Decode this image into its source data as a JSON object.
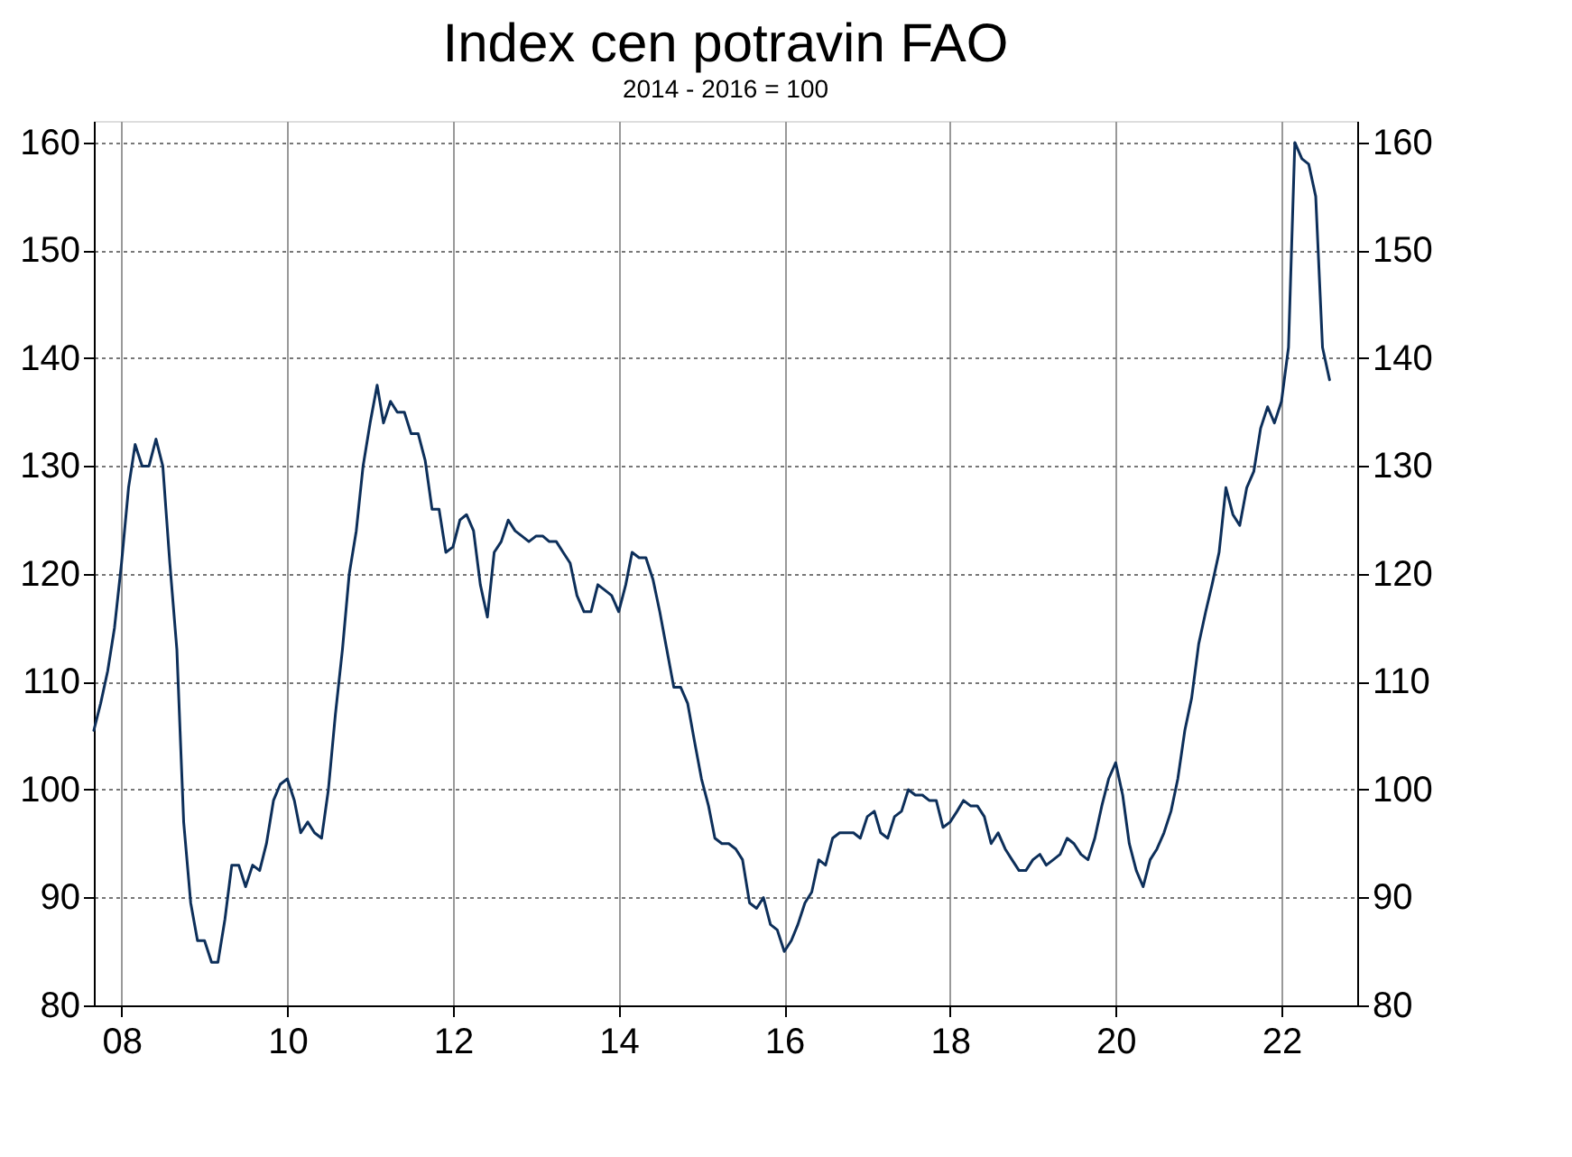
{
  "chart_data": {
    "type": "line",
    "title": "Index cen potravin FAO",
    "subtitle": "2014 - 2016 = 100",
    "x": [
      "2007-09",
      "2007-10",
      "2007-11",
      "2007-12",
      "2008-01",
      "2008-02",
      "2008-03",
      "2008-04",
      "2008-05",
      "2008-06",
      "2008-07",
      "2008-08",
      "2008-09",
      "2008-10",
      "2008-11",
      "2008-12",
      "2009-01",
      "2009-02",
      "2009-03",
      "2009-04",
      "2009-05",
      "2009-06",
      "2009-07",
      "2009-08",
      "2009-09",
      "2009-10",
      "2009-11",
      "2009-12",
      "2010-01",
      "2010-02",
      "2010-03",
      "2010-04",
      "2010-05",
      "2010-06",
      "2010-07",
      "2010-08",
      "2010-09",
      "2010-10",
      "2010-11",
      "2010-12",
      "2011-01",
      "2011-02",
      "2011-03",
      "2011-04",
      "2011-05",
      "2011-06",
      "2011-07",
      "2011-08",
      "2011-09",
      "2011-10",
      "2011-11",
      "2011-12",
      "2012-01",
      "2012-02",
      "2012-03",
      "2012-04",
      "2012-05",
      "2012-06",
      "2012-07",
      "2012-08",
      "2012-09",
      "2012-10",
      "2012-11",
      "2012-12",
      "2013-01",
      "2013-02",
      "2013-03",
      "2013-04",
      "2013-05",
      "2013-06",
      "2013-07",
      "2013-08",
      "2013-09",
      "2013-10",
      "2013-11",
      "2013-12",
      "2014-01",
      "2014-02",
      "2014-03",
      "2014-04",
      "2014-05",
      "2014-06",
      "2014-07",
      "2014-08",
      "2014-09",
      "2014-10",
      "2014-11",
      "2014-12",
      "2015-01",
      "2015-02",
      "2015-03",
      "2015-04",
      "2015-05",
      "2015-06",
      "2015-07",
      "2015-08",
      "2015-09",
      "2015-10",
      "2015-11",
      "2015-12",
      "2016-01",
      "2016-02",
      "2016-03",
      "2016-04",
      "2016-05",
      "2016-06",
      "2016-07",
      "2016-08",
      "2016-09",
      "2016-10",
      "2016-11",
      "2016-12",
      "2017-01",
      "2017-02",
      "2017-03",
      "2017-04",
      "2017-05",
      "2017-06",
      "2017-07",
      "2017-08",
      "2017-09",
      "2017-10",
      "2017-11",
      "2017-12",
      "2018-01",
      "2018-02",
      "2018-03",
      "2018-04",
      "2018-05",
      "2018-06",
      "2018-07",
      "2018-08",
      "2018-09",
      "2018-10",
      "2018-11",
      "2018-12",
      "2019-01",
      "2019-02",
      "2019-03",
      "2019-04",
      "2019-05",
      "2019-06",
      "2019-07",
      "2019-08",
      "2019-09",
      "2019-10",
      "2019-11",
      "2019-12",
      "2020-01",
      "2020-02",
      "2020-03",
      "2020-04",
      "2020-05",
      "2020-06",
      "2020-07",
      "2020-08",
      "2020-09",
      "2020-10",
      "2020-11",
      "2020-12",
      "2021-01",
      "2021-02",
      "2021-03",
      "2021-04",
      "2021-05",
      "2021-06",
      "2021-07",
      "2021-08",
      "2021-09",
      "2021-10",
      "2021-11",
      "2021-12",
      "2022-01",
      "2022-02",
      "2022-03",
      "2022-04",
      "2022-05",
      "2022-06",
      "2022-07",
      "2022-08"
    ],
    "series": [
      {
        "color": "#0d2f5a",
        "values": [
          105.5,
          108,
          111,
          115,
          121,
          128,
          132,
          130,
          130,
          132.5,
          130,
          121,
          113,
          97,
          89.5,
          86,
          86,
          84,
          84,
          88,
          93,
          93,
          91,
          93,
          92.5,
          95,
          99,
          100.5,
          101,
          99,
          96,
          97,
          96,
          95.5,
          100,
          107,
          113,
          120,
          124,
          130,
          134,
          137.5,
          134,
          136,
          135,
          135,
          133,
          133,
          130.5,
          126,
          126,
          122,
          122.5,
          125,
          125.5,
          124,
          119,
          116,
          122,
          123,
          125,
          124,
          123.5,
          123,
          123.5,
          123.5,
          123,
          123,
          122,
          121,
          118,
          116.5,
          116.5,
          119,
          118.5,
          118,
          116.5,
          119,
          122,
          121.5,
          121.5,
          119.5,
          116.5,
          113,
          109.5,
          109.5,
          108,
          104.5,
          101,
          98.5,
          95.5,
          95,
          95,
          94.5,
          93.5,
          89.5,
          89,
          90,
          87.5,
          87,
          85,
          86,
          87.5,
          89.5,
          90.5,
          93.5,
          93,
          95.5,
          96,
          96,
          96,
          95.5,
          97.5,
          98,
          96,
          95.5,
          97.5,
          98,
          100,
          99.5,
          99.5,
          99,
          99,
          96.5,
          97,
          98,
          99,
          98.5,
          98.5,
          97.5,
          95,
          96,
          94.5,
          93.5,
          92.5,
          92.5,
          93.5,
          94,
          93,
          93.5,
          94,
          95.5,
          95,
          94,
          93.5,
          95.5,
          98.5,
          101,
          102.5,
          99.5,
          95,
          92.5,
          91,
          93.5,
          94.5,
          96,
          98,
          101,
          105.5,
          108.5,
          113.5,
          116.5,
          119,
          122,
          128,
          125.5,
          124.5,
          128,
          129.5,
          133.5,
          135.5,
          134,
          136,
          141,
          160,
          158.5,
          158,
          155,
          141,
          138
        ]
      }
    ],
    "xlim": [
      "2007-09",
      "2022-12"
    ],
    "xticks": [
      {
        "value": "2008",
        "label": "08"
      },
      {
        "value": "2010",
        "label": "10"
      },
      {
        "value": "2012",
        "label": "12"
      },
      {
        "value": "2014",
        "label": "14"
      },
      {
        "value": "2016",
        "label": "16"
      },
      {
        "value": "2018",
        "label": "18"
      },
      {
        "value": "2020",
        "label": "20"
      },
      {
        "value": "2022",
        "label": "22"
      }
    ],
    "ylim": [
      80,
      162
    ],
    "yticks": [
      80,
      90,
      100,
      110,
      120,
      130,
      140,
      150,
      160
    ],
    "y2lim": [
      80,
      162
    ],
    "y2ticks": [
      80,
      90,
      100,
      110,
      120,
      130,
      140,
      150,
      160
    ],
    "grid": true
  }
}
